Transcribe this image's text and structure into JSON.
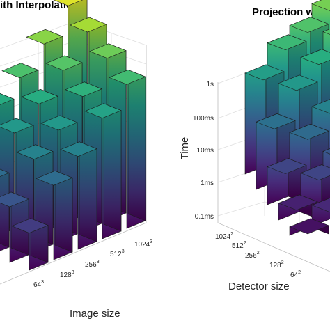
{
  "colors": {
    "viridis": [
      "#440154",
      "#472c7a",
      "#3b518b",
      "#2c718e",
      "#21908d",
      "#27ad81",
      "#5cc863",
      "#aadc32",
      "#fde725"
    ],
    "grid": "#dedede",
    "text": "#262626"
  },
  "chart_data": [
    {
      "type": "bar3d",
      "title": "ith Interpolation",
      "xlabel": "Image size",
      "ylabel": "",
      "zlabel": "",
      "x_ticks": [
        {
          "base": "64",
          "exp": "3"
        },
        {
          "base": "128",
          "exp": "3"
        },
        {
          "base": "256",
          "exp": "3"
        },
        {
          "base": "512",
          "exp": "3"
        },
        {
          "base": "1024",
          "exp": "3"
        }
      ],
      "scale": "log",
      "zlim_log10": [
        -4,
        0.5
      ],
      "rows_log10": [
        [
          -3.2,
          -2.4,
          -2.0,
          -1.4,
          -0.9
        ],
        [
          -2.8,
          -2.0,
          -1.6,
          -1.1,
          -0.5
        ],
        [
          -2.4,
          -1.6,
          -1.2,
          -0.7,
          -0.1
        ],
        [
          -2.0,
          -1.2,
          -0.8,
          -0.3,
          0.3
        ]
      ]
    },
    {
      "type": "bar3d",
      "title": "Projection wit",
      "xlabel": "",
      "ylabel": "Detector size",
      "zlabel": "Time",
      "z_ticks": [
        "0.1ms",
        "1ms",
        "10ms",
        "100ms",
        "1s"
      ],
      "z_ticks_log10": [
        -4,
        -3,
        -2,
        -1,
        0
      ],
      "y_ticks": [
        {
          "base": "1024",
          "exp": "2"
        },
        {
          "base": "512",
          "exp": "2"
        },
        {
          "base": "256",
          "exp": "2"
        },
        {
          "base": "128",
          "exp": "2"
        },
        {
          "base": "64",
          "exp": "2"
        }
      ],
      "scale": "log",
      "zlim_log10": [
        -4,
        0.3
      ],
      "rows_log10": [
        [
          -1.6,
          -1.1,
          -0.9,
          -0.6
        ],
        [
          -2.4,
          -1.7,
          -1.3,
          -0.9
        ],
        [
          -3.1,
          -2.5,
          -2.1,
          -1.7
        ],
        [
          -3.6,
          -3.1,
          -2.8,
          -2.5
        ],
        [
          -3.8,
          -3.5,
          -3.3,
          -3.1
        ]
      ]
    }
  ]
}
